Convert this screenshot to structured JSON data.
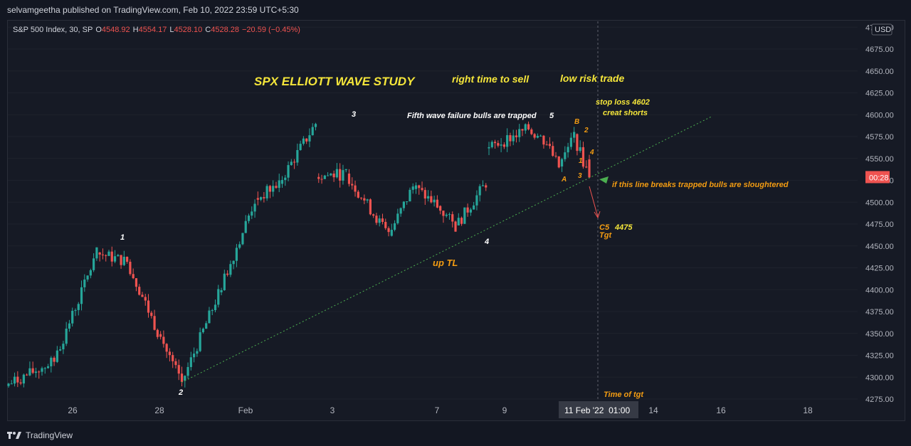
{
  "header": {
    "published_by": "selvamgeetha published on TradingView.com, Feb 10, 2022 23:59 UTC+5:30"
  },
  "legend": {
    "symbol": "S&P 500 Index, 30, SP",
    "open_label": "O",
    "open": "4548.92",
    "high_label": "H",
    "high": "4554.17",
    "low_label": "L",
    "low": "4528.10",
    "close_label": "C",
    "close": "4528.28",
    "change": "−20.59 (−0.45%)"
  },
  "price_axis": {
    "currency": "USD",
    "current_tag": "00:28"
  },
  "time_axis": {
    "highlight": "11 Feb '22  01:00"
  },
  "footer": {
    "brand": "TradingView"
  },
  "colors": {
    "up": "#26a69a",
    "down": "#ef5350",
    "background": "#131722",
    "annotation_yellow": "#f5e63a",
    "annotation_orange": "#f39c12",
    "trendline": "#4caf50"
  },
  "chart_data": {
    "type": "candlestick",
    "symbol": "S&P 500 Index",
    "interval": "30",
    "ylim": [
      4275,
      4700
    ],
    "y_ticks": [
      4700,
      4675,
      4650,
      4625,
      4600,
      4575,
      4550,
      4525,
      4500,
      4475,
      4450,
      4425,
      4400,
      4375,
      4350,
      4325,
      4300,
      4275
    ],
    "x_ticks": [
      "26",
      "28",
      "Feb",
      "3",
      "7",
      "9",
      "14",
      "16",
      "18"
    ],
    "segments": [
      {
        "start": 4290,
        "end": 4318,
        "n": 16
      },
      {
        "start": 4318,
        "end": 4442,
        "n": 14
      },
      {
        "start": 4442,
        "end": 4432,
        "n": 10
      },
      {
        "start": 4432,
        "end": 4352,
        "n": 10
      },
      {
        "start": 4352,
        "end": 4294,
        "n": 8
      },
      {
        "start": 4294,
        "end": 4395,
        "n": 12
      },
      {
        "start": 4395,
        "end": 4502,
        "n": 12
      },
      {
        "start": 4502,
        "end": 4522,
        "n": 8
      },
      {
        "start": 4522,
        "end": 4590,
        "n": 12
      },
      {
        "start": 4530,
        "end": 4532,
        "n": 10
      },
      {
        "start": 4532,
        "end": 4462,
        "n": 14
      },
      {
        "start": 4462,
        "end": 4518,
        "n": 8
      },
      {
        "start": 4518,
        "end": 4496,
        "n": 8
      },
      {
        "start": 4496,
        "end": 4472,
        "n": 6
      },
      {
        "start": 4472,
        "end": 4522,
        "n": 10
      },
      {
        "start": 4560,
        "end": 4584,
        "n": 14
      },
      {
        "start": 4584,
        "end": 4568,
        "n": 6
      },
      {
        "start": 4566,
        "end": 4540,
        "n": 4
      },
      {
        "start": 4540,
        "end": 4575,
        "n": 5
      },
      {
        "start": 4575,
        "end": 4528,
        "n": 5
      }
    ],
    "last_candle": {
      "open": 4548.92,
      "high": 4554.17,
      "low": 4528.1,
      "close": 4528.28
    },
    "trendline": {
      "from_price": 4294,
      "to_price": 4598,
      "label": "up TL"
    },
    "projection": {
      "target_price": 4475,
      "stop_loss": 4602
    },
    "annotations": {
      "title": "SPX ELLIOTT WAVE STUDY",
      "sell": "right time to sell",
      "risk": "low risk trade",
      "stop": "stop loss 4602",
      "shorts": "creat shorts",
      "fifth": "Fifth wave failure  bulls are trapped",
      "break_note": "if this line breaks trapped bulls are sloughtered",
      "target_c5": "C5",
      "target_value": "4475",
      "target_tgt": "Tgt",
      "time_tgt": "Time of tgt",
      "wave_1": "1",
      "wave_2": "2",
      "wave_3": "3",
      "wave_4": "4",
      "wave_5": "5",
      "wave_A": "A",
      "wave_B": "B",
      "sub_1": "1",
      "sub_2": "2",
      "sub_3": "3",
      "sub_4": "4"
    }
  }
}
